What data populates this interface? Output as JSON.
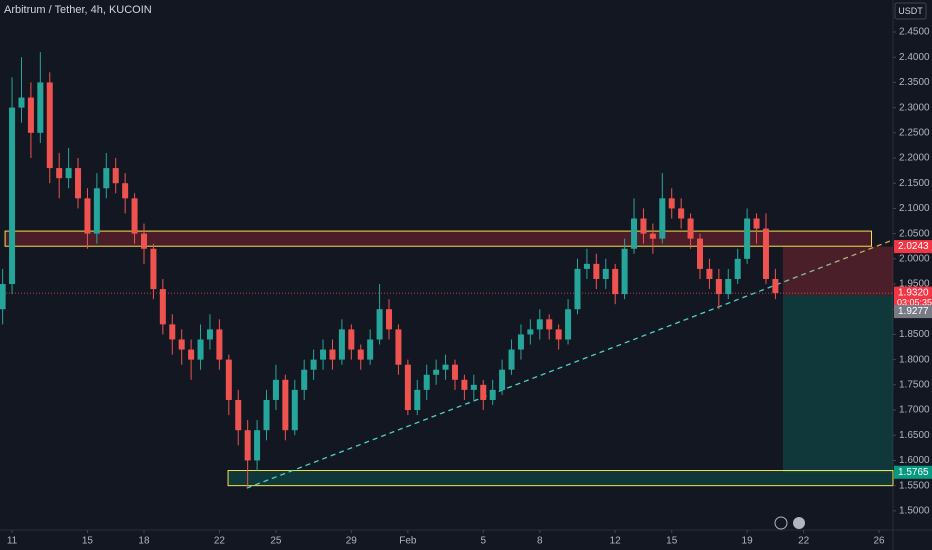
{
  "chart_data": {
    "type": "candlestick",
    "title": "Arbitrum / Tether, 4h, KUCOIN",
    "currency": "USDT",
    "x": [
      10.5,
      11,
      11.5,
      12,
      12.5,
      13,
      13.5,
      14,
      14.5,
      15,
      15.5,
      16,
      16.5,
      17,
      17.5,
      18,
      18.5,
      19,
      19.5,
      20,
      20.5,
      21,
      21.5,
      22,
      22.5,
      23,
      23.5,
      24,
      24.5,
      25,
      25.5,
      26,
      26.5,
      27,
      27.5,
      28,
      28.5,
      29,
      29.5,
      30,
      30.5,
      31,
      31.5,
      32,
      32.5,
      33,
      33.5,
      34,
      34.5,
      35,
      35.5,
      36,
      36.5,
      37,
      37.5,
      38,
      38.5,
      39,
      39.5,
      40,
      40.5,
      41,
      41.5,
      42,
      42.5,
      43,
      43.5,
      44,
      44.5,
      45,
      45.5,
      46,
      46.5,
      47,
      47.5,
      48,
      48.5,
      49,
      49.5,
      50,
      50.5,
      51,
      51.5
    ],
    "open": [
      1.9,
      1.95,
      2.3,
      2.32,
      2.25,
      2.35,
      2.18,
      2.16,
      2.18,
      2.12,
      2.05,
      2.14,
      2.18,
      2.15,
      2.12,
      2.05,
      2.02,
      1.94,
      1.87,
      1.84,
      1.82,
      1.8,
      1.84,
      1.86,
      1.8,
      1.72,
      1.66,
      1.6,
      1.66,
      1.72,
      1.76,
      1.66,
      1.74,
      1.78,
      1.8,
      1.82,
      1.8,
      1.86,
      1.82,
      1.8,
      1.84,
      1.9,
      1.86,
      1.79,
      1.7,
      1.74,
      1.77,
      1.78,
      1.79,
      1.76,
      1.74,
      1.75,
      1.72,
      1.74,
      1.78,
      1.82,
      1.85,
      1.86,
      1.88,
      1.86,
      1.84,
      1.9,
      1.98,
      1.99,
      1.96,
      1.98,
      1.93,
      2.02,
      2.08,
      2.05,
      2.04,
      2.12,
      2.1,
      2.08,
      2.04,
      1.98,
      1.96,
      1.93,
      1.96,
      2.0,
      2.08,
      2.06,
      1.96
    ],
    "high": [
      1.98,
      2.36,
      2.4,
      2.35,
      2.41,
      2.37,
      2.21,
      2.22,
      2.2,
      2.14,
      2.17,
      2.21,
      2.2,
      2.17,
      2.13,
      2.07,
      2.03,
      1.96,
      1.89,
      1.86,
      1.84,
      1.87,
      1.89,
      1.88,
      1.81,
      1.74,
      1.68,
      1.68,
      1.74,
      1.79,
      1.77,
      1.76,
      1.8,
      1.82,
      1.84,
      1.84,
      1.88,
      1.87,
      1.83,
      1.86,
      1.95,
      1.92,
      1.87,
      1.8,
      1.76,
      1.79,
      1.8,
      1.81,
      1.8,
      1.77,
      1.77,
      1.76,
      1.76,
      1.8,
      1.84,
      1.87,
      1.88,
      1.9,
      1.89,
      1.87,
      1.92,
      2.0,
      2.02,
      2.01,
      2.0,
      1.99,
      2.04,
      2.12,
      2.1,
      2.07,
      2.17,
      2.14,
      2.12,
      2.09,
      2.05,
      2.0,
      1.98,
      1.98,
      2.02,
      2.1,
      2.09,
      2.09,
      1.98
    ],
    "low": [
      1.87,
      1.93,
      2.27,
      2.2,
      2.23,
      2.15,
      2.12,
      2.14,
      2.1,
      2.02,
      2.03,
      2.12,
      2.13,
      2.09,
      2.03,
      1.99,
      1.92,
      1.85,
      1.81,
      1.79,
      1.76,
      1.78,
      1.82,
      1.78,
      1.69,
      1.63,
      1.545,
      1.58,
      1.64,
      1.7,
      1.64,
      1.65,
      1.72,
      1.76,
      1.78,
      1.78,
      1.79,
      1.8,
      1.78,
      1.79,
      1.83,
      1.84,
      1.77,
      1.69,
      1.69,
      1.72,
      1.75,
      1.76,
      1.74,
      1.72,
      1.72,
      1.7,
      1.71,
      1.73,
      1.77,
      1.8,
      1.83,
      1.84,
      1.84,
      1.82,
      1.83,
      1.89,
      1.96,
      1.94,
      1.94,
      1.91,
      1.92,
      2.01,
      2.03,
      2.01,
      2.03,
      2.08,
      2.06,
      2.02,
      1.96,
      1.94,
      1.9,
      1.92,
      1.95,
      1.99,
      2.03,
      1.95,
      1.92
    ],
    "close": [
      1.95,
      2.3,
      2.32,
      2.25,
      2.35,
      2.18,
      2.16,
      2.18,
      2.12,
      2.05,
      2.14,
      2.18,
      2.15,
      2.12,
      2.05,
      2.02,
      1.94,
      1.87,
      1.84,
      1.82,
      1.8,
      1.84,
      1.86,
      1.8,
      1.72,
      1.66,
      1.6,
      1.66,
      1.72,
      1.76,
      1.66,
      1.74,
      1.78,
      1.8,
      1.82,
      1.8,
      1.86,
      1.82,
      1.8,
      1.84,
      1.9,
      1.86,
      1.79,
      1.7,
      1.74,
      1.77,
      1.78,
      1.79,
      1.76,
      1.74,
      1.75,
      1.72,
      1.74,
      1.78,
      1.82,
      1.85,
      1.86,
      1.88,
      1.86,
      1.84,
      1.9,
      1.98,
      1.99,
      1.96,
      1.98,
      1.93,
      2.02,
      2.08,
      2.05,
      2.04,
      2.12,
      2.1,
      2.08,
      2.04,
      1.98,
      1.96,
      1.93,
      1.96,
      2.0,
      2.08,
      2.06,
      1.96,
      1.932
    ],
    "up_color": "#26a69a",
    "down_color": "#ef5350",
    "xlim": [
      10.36,
      57.74
    ],
    "xticks": [
      11,
      15,
      18,
      22,
      25,
      29,
      {
        "value": 32,
        "label": "Feb"
      },
      {
        "value": 36,
        "label": "5"
      },
      {
        "value": 39,
        "label": "8"
      },
      {
        "value": 43,
        "label": "12"
      },
      {
        "value": 46,
        "label": "15"
      },
      {
        "value": 50,
        "label": "19"
      },
      {
        "value": 53,
        "label": "22"
      },
      {
        "value": 57,
        "label": "26"
      }
    ],
    "ylim": [
      1.462,
      2.5135
    ],
    "yticks": [
      {
        "value": 1.5,
        "label": "1.5000"
      },
      {
        "value": 1.55,
        "label": "1.5500"
      },
      {
        "value": 1.6,
        "label": "1.6000"
      },
      {
        "value": 1.65,
        "label": "1.6500"
      },
      {
        "value": 1.7,
        "label": "1.7000"
      },
      {
        "value": 1.75,
        "label": "1.7500"
      },
      {
        "value": 1.8,
        "label": "1.8000"
      },
      {
        "value": 1.85,
        "label": "1.8500"
      },
      {
        "value": 1.9,
        "label": "1.9000"
      },
      {
        "value": 1.95,
        "label": "1.9500"
      },
      {
        "value": 2.0,
        "label": "2.0000"
      },
      {
        "value": 2.05,
        "label": "2.0500"
      },
      {
        "value": 2.1,
        "label": "2.1000"
      },
      {
        "value": 2.15,
        "label": "2.1500"
      },
      {
        "value": 2.2,
        "label": "2.2000"
      },
      {
        "value": 2.25,
        "label": "2.2500"
      },
      {
        "value": 2.3,
        "label": "2.3000"
      },
      {
        "value": 2.35,
        "label": "2.3500"
      },
      {
        "value": 2.4,
        "label": "2.4000"
      },
      {
        "value": 2.45,
        "label": "2.4500"
      }
    ],
    "zones": [
      {
        "x0": 10.63,
        "x1": 56.6,
        "top": 2.055,
        "bottom": 2.025,
        "color": "#f5e14b"
      },
      {
        "x0": 22.46,
        "x1": 57.74,
        "top": 1.58,
        "bottom": 1.55,
        "color": "#f5e14b"
      }
    ],
    "trendline": {
      "x0": 23.45,
      "y0": 1.545,
      "x1": 57.74,
      "y1": 2.0375
    },
    "position": {
      "x0": 51.9,
      "stop": 2.0243,
      "entry": 1.9277,
      "target": 1.5765
    },
    "last_price": {
      "value": 1.932,
      "label": "1.9320",
      "countdown": "03:05:35"
    }
  }
}
